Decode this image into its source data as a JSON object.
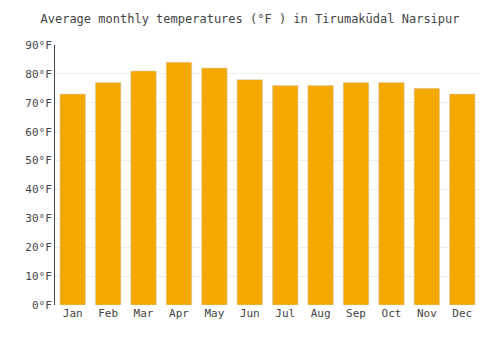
{
  "chart_data": {
    "type": "bar",
    "title": "Average monthly temperatures (°F ) in Tirumakūdal Narsipur",
    "categories": [
      "Jan",
      "Feb",
      "Mar",
      "Apr",
      "May",
      "Jun",
      "Jul",
      "Aug",
      "Sep",
      "Oct",
      "Nov",
      "Dec"
    ],
    "values": [
      73,
      77,
      81,
      84,
      82,
      78,
      76,
      76,
      77,
      77,
      75,
      73
    ],
    "color": "#F5A800",
    "ylim": [
      0,
      90
    ],
    "yticks": [
      {
        "value": 0,
        "label": "0°F"
      },
      {
        "value": 10,
        "label": "10°F"
      },
      {
        "value": 20,
        "label": "20°F"
      },
      {
        "value": 30,
        "label": "30°F"
      },
      {
        "value": 40,
        "label": "40°F"
      },
      {
        "value": 50,
        "label": "50°F"
      },
      {
        "value": 60,
        "label": "60°F"
      },
      {
        "value": 70,
        "label": "70°F"
      },
      {
        "value": 80,
        "label": "80°F"
      },
      {
        "value": 90,
        "label": "90°F"
      }
    ],
    "grid": true
  }
}
